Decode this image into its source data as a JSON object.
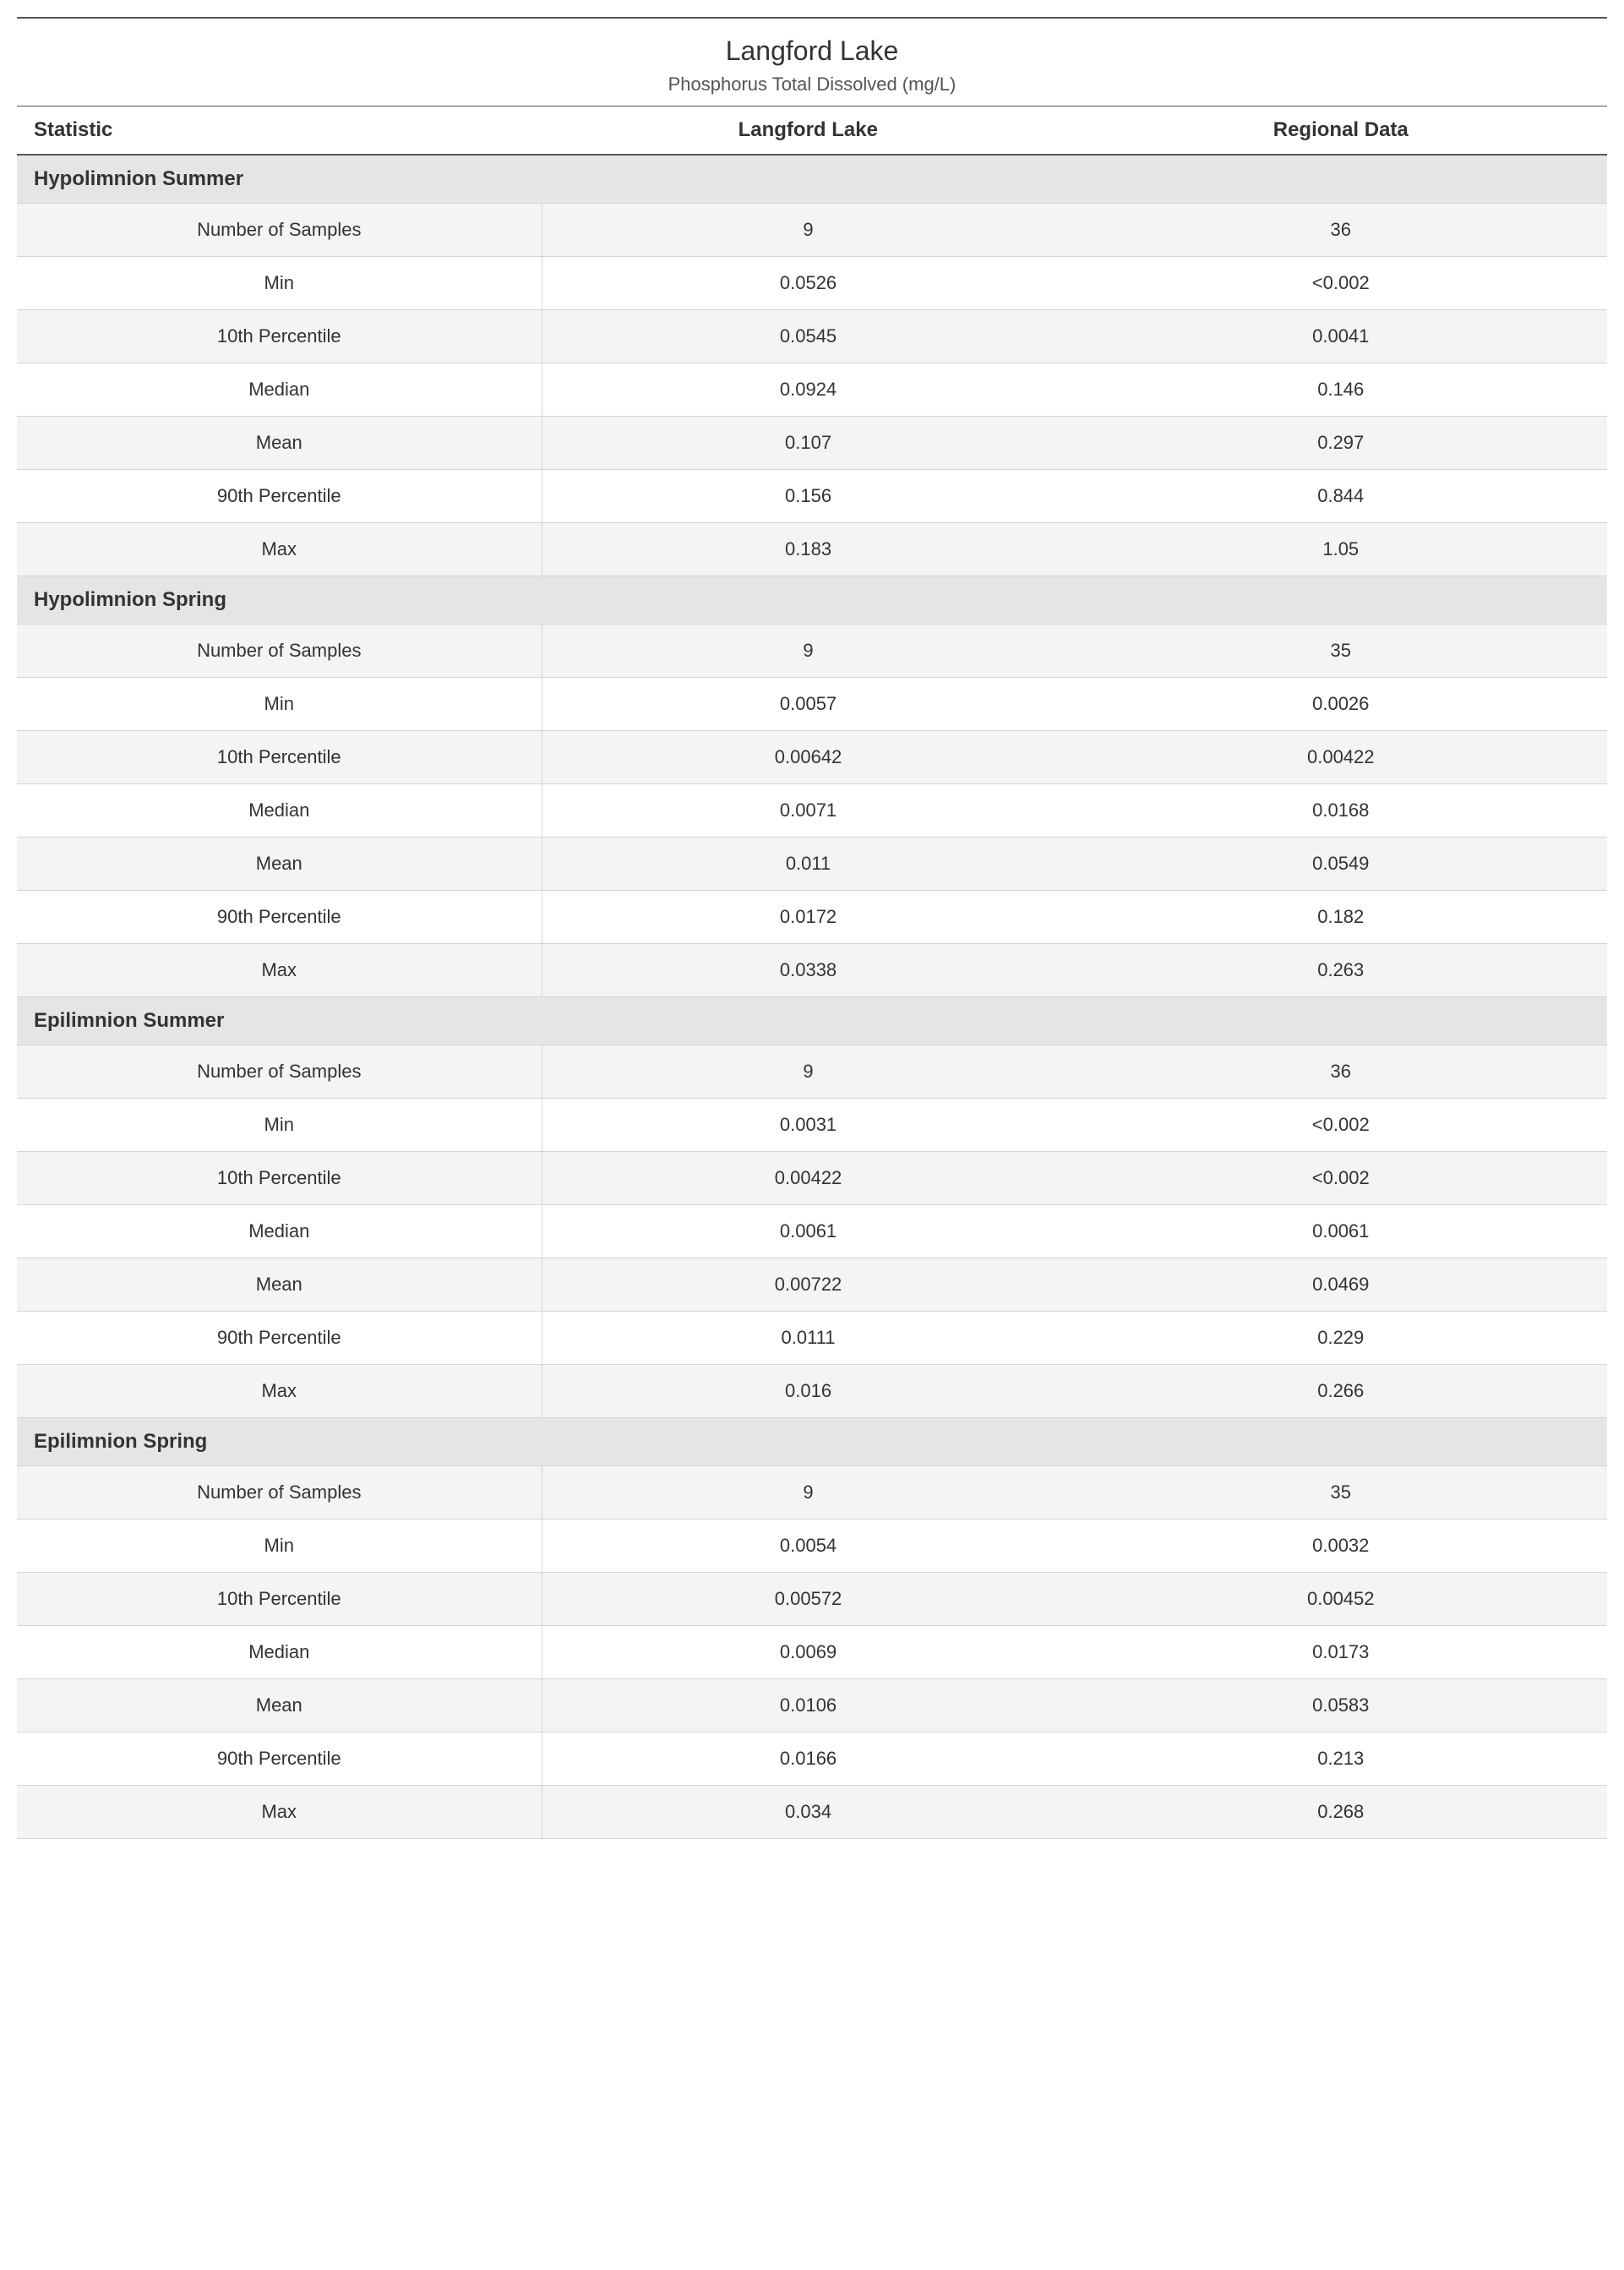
{
  "header": {
    "title": "Langford Lake",
    "subtitle": "Phosphorus Total Dissolved (mg/L)"
  },
  "columns": {
    "statistic": "Statistic",
    "location": "Langford Lake",
    "regional": "Regional Data"
  },
  "sections": [
    {
      "title": "Hypolimnion Summer",
      "rows": [
        {
          "stat": "Number of Samples",
          "loc": "9",
          "reg": "36"
        },
        {
          "stat": "Min",
          "loc": "0.0526",
          "reg": "<0.002"
        },
        {
          "stat": "10th Percentile",
          "loc": "0.0545",
          "reg": "0.0041"
        },
        {
          "stat": "Median",
          "loc": "0.0924",
          "reg": "0.146"
        },
        {
          "stat": "Mean",
          "loc": "0.107",
          "reg": "0.297"
        },
        {
          "stat": "90th Percentile",
          "loc": "0.156",
          "reg": "0.844"
        },
        {
          "stat": "Max",
          "loc": "0.183",
          "reg": "1.05"
        }
      ]
    },
    {
      "title": "Hypolimnion Spring",
      "rows": [
        {
          "stat": "Number of Samples",
          "loc": "9",
          "reg": "35"
        },
        {
          "stat": "Min",
          "loc": "0.0057",
          "reg": "0.0026"
        },
        {
          "stat": "10th Percentile",
          "loc": "0.00642",
          "reg": "0.00422"
        },
        {
          "stat": "Median",
          "loc": "0.0071",
          "reg": "0.0168"
        },
        {
          "stat": "Mean",
          "loc": "0.011",
          "reg": "0.0549"
        },
        {
          "stat": "90th Percentile",
          "loc": "0.0172",
          "reg": "0.182"
        },
        {
          "stat": "Max",
          "loc": "0.0338",
          "reg": "0.263"
        }
      ]
    },
    {
      "title": "Epilimnion Summer",
      "rows": [
        {
          "stat": "Number of Samples",
          "loc": "9",
          "reg": "36"
        },
        {
          "stat": "Min",
          "loc": "0.0031",
          "reg": "<0.002"
        },
        {
          "stat": "10th Percentile",
          "loc": "0.00422",
          "reg": "<0.002"
        },
        {
          "stat": "Median",
          "loc": "0.0061",
          "reg": "0.0061"
        },
        {
          "stat": "Mean",
          "loc": "0.00722",
          "reg": "0.0469"
        },
        {
          "stat": "90th Percentile",
          "loc": "0.0111",
          "reg": "0.229"
        },
        {
          "stat": "Max",
          "loc": "0.016",
          "reg": "0.266"
        }
      ]
    },
    {
      "title": "Epilimnion Spring",
      "rows": [
        {
          "stat": "Number of Samples",
          "loc": "9",
          "reg": "35"
        },
        {
          "stat": "Min",
          "loc": "0.0054",
          "reg": "0.0032"
        },
        {
          "stat": "10th Percentile",
          "loc": "0.00572",
          "reg": "0.00452"
        },
        {
          "stat": "Median",
          "loc": "0.0069",
          "reg": "0.0173"
        },
        {
          "stat": "Mean",
          "loc": "0.0106",
          "reg": "0.0583"
        },
        {
          "stat": "90th Percentile",
          "loc": "0.0166",
          "reg": "0.213"
        },
        {
          "stat": "Max",
          "loc": "0.034",
          "reg": "0.268"
        }
      ]
    }
  ],
  "styling": {
    "title_fontsize": 32,
    "subtitle_fontsize": 22,
    "header_fontsize": 24,
    "cell_fontsize": 22,
    "section_bg": "#e5e5e5",
    "alt_row_bg": "#f4f4f4",
    "plain_row_bg": "#ffffff",
    "border_color": "#d4d4d4",
    "top_border_color": "#555555",
    "text_color": "#333333"
  }
}
